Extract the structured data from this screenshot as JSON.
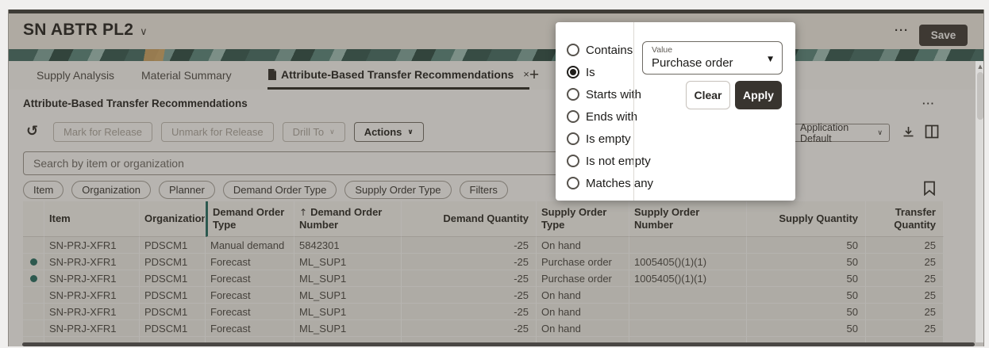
{
  "icons": {
    "chevron_down": "∨",
    "caret_down": "▼",
    "sort_asc": "↑",
    "refresh": "↻",
    "ellipsis": "···",
    "close": "×",
    "add_tab": "+",
    "scroll_up": "▲"
  },
  "colors": {
    "accent_teal": "#1d6a5e",
    "dark_button": "#38342f",
    "banner_teal": "#3f6a61",
    "banner_gold": "#d9a75f"
  },
  "header": {
    "title": "SN ABTR PL2",
    "save_label": "Save"
  },
  "tabs": {
    "items": [
      {
        "label": "Supply Analysis",
        "active": false
      },
      {
        "label": "Material Summary",
        "active": false
      },
      {
        "label": "Attribute-Based Transfer Recommendations",
        "active": true,
        "closable": true
      }
    ]
  },
  "panel": {
    "title": "Attribute-Based Transfer Recommendations",
    "toolbar": {
      "buttons": [
        {
          "label": "Mark for Release",
          "enabled": false,
          "dropdown": false
        },
        {
          "label": "Unmark for Release",
          "enabled": false,
          "dropdown": false
        },
        {
          "label": "Drill To",
          "enabled": false,
          "dropdown": true
        },
        {
          "label": "Actions",
          "enabled": true,
          "dropdown": true
        }
      ],
      "layout_select_value": "Application Default"
    },
    "search": {
      "placeholder": "Search by item or organization"
    },
    "chips": [
      "Item",
      "Organization",
      "Planner",
      "Demand Order Type",
      "Supply Order Type",
      "Filters"
    ]
  },
  "filter_popup": {
    "options": [
      "Contains",
      "Is",
      "Starts with",
      "Ends with",
      "Is empty",
      "Is not empty",
      "Matches any"
    ],
    "selected_option": "Is",
    "value_label": "Value",
    "value": "Purchase order",
    "clear_label": "Clear",
    "apply_label": "Apply"
  },
  "table": {
    "columns": [
      {
        "label": "",
        "align": "left"
      },
      {
        "label": "Item",
        "align": "left"
      },
      {
        "label": "Organization",
        "align": "left"
      },
      {
        "label": "Demand Order Type",
        "align": "left",
        "highlight": true
      },
      {
        "label": "Demand Order Number",
        "align": "left",
        "sort": "asc"
      },
      {
        "label": "Demand Quantity",
        "align": "right"
      },
      {
        "label": "Supply Order Type",
        "align": "left"
      },
      {
        "label": "Supply Order Number",
        "align": "left"
      },
      {
        "label": "Supply Quantity",
        "align": "right"
      },
      {
        "label": "Transfer Quantity",
        "align": "right"
      }
    ],
    "rows": [
      {
        "dot": false,
        "cells": [
          "SN-PRJ-XFR1",
          "PDSCM1",
          "Manual demand",
          "5842301",
          "-25",
          "On hand",
          "",
          "50",
          "25"
        ]
      },
      {
        "dot": true,
        "cells": [
          "SN-PRJ-XFR1",
          "PDSCM1",
          "Forecast",
          "ML_SUP1",
          "-25",
          "Purchase order",
          "1005405()(1)(1)",
          "50",
          "25"
        ]
      },
      {
        "dot": true,
        "cells": [
          "SN-PRJ-XFR1",
          "PDSCM1",
          "Forecast",
          "ML_SUP1",
          "-25",
          "Purchase order",
          "1005405()(1)(1)",
          "50",
          "25"
        ]
      },
      {
        "dot": false,
        "cells": [
          "SN-PRJ-XFR1",
          "PDSCM1",
          "Forecast",
          "ML_SUP1",
          "-25",
          "On hand",
          "",
          "50",
          "25"
        ]
      },
      {
        "dot": false,
        "cells": [
          "SN-PRJ-XFR1",
          "PDSCM1",
          "Forecast",
          "ML_SUP1",
          "-25",
          "On hand",
          "",
          "50",
          "25"
        ]
      },
      {
        "dot": false,
        "cells": [
          "SN-PRJ-XFR1",
          "PDSCM1",
          "Forecast",
          "ML_SUP1",
          "-25",
          "On hand",
          "",
          "50",
          "25"
        ]
      }
    ]
  }
}
